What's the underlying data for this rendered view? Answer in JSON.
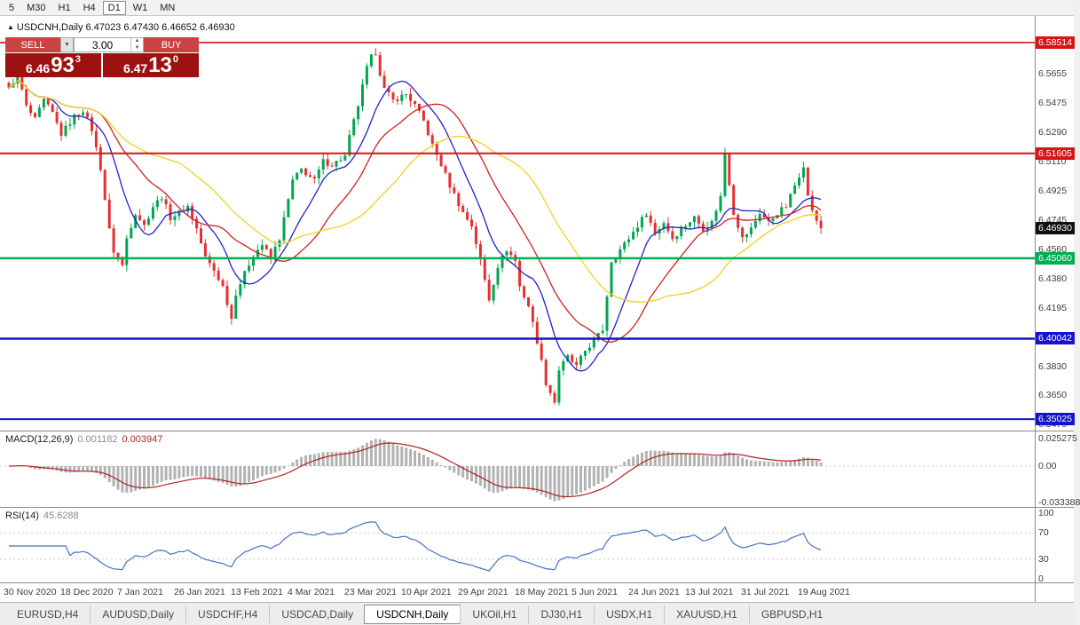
{
  "toolbar": {
    "timeframes": [
      "5",
      "M30",
      "H1",
      "H4",
      "D1",
      "W1",
      "MN"
    ],
    "active": "D1"
  },
  "chart_header": {
    "marker": "▲",
    "text": "USDCNH,Daily 6.47023 6.47430 6.46652 6.46930"
  },
  "trade_panel": {
    "sell_label": "SELL",
    "buy_label": "BUY",
    "volume": "3.00",
    "icons": {
      "dropdown": "▼",
      "spin_up": "▲",
      "spin_down": "▼"
    },
    "sell_price": {
      "base": "6.46",
      "big": "93",
      "sup": "3"
    },
    "buy_price": {
      "base": "6.47",
      "big": "13",
      "sup": "0"
    }
  },
  "macd_panel": {
    "name": "MACD(12,26,9)",
    "main_value": "0.001182",
    "signal_value": "0.003947"
  },
  "rsi_panel": {
    "name": "RSI(14)",
    "value": "45.6288"
  },
  "tabs": [
    "EURUSD,H4",
    "AUDUSD,Daily",
    "USDCHF,H4",
    "USDCAD,Daily",
    "USDCNH,Daily",
    "UKOil,H1",
    "DJ30,H1",
    "USDX,H1",
    "XAUUSD,H1",
    "GBPUSD,H1"
  ],
  "chart_data": {
    "type": "candlestick",
    "symbol": "USDCNH",
    "period": "Daily",
    "current_ohlc": {
      "open": 6.47023,
      "high": 6.4743,
      "low": 6.46652,
      "close": 6.4693
    },
    "x_labels": [
      "30 Nov 2020",
      "18 Dec 2020",
      "7 Jan 2021",
      "26 Jan 2021",
      "13 Feb 2021",
      "4 Mar 2021",
      "23 Mar 2021",
      "10 Apr 2021",
      "29 Apr 2021",
      "18 May 2021",
      "5 Jun 2021",
      "24 Jun 2021",
      "13 Jul 2021",
      "31 Jul 2021",
      "19 Aug 2021"
    ],
    "y_ticks": [
      {
        "text": "6.5655",
        "v": 6.5655
      },
      {
        "text": "6.5475",
        "v": 6.5475
      },
      {
        "text": "6.5290",
        "v": 6.529
      },
      {
        "text": "6.5110",
        "v": 6.511
      },
      {
        "text": "6.4925",
        "v": 6.4925
      },
      {
        "text": "6.4745",
        "v": 6.4745
      },
      {
        "text": "6.4560",
        "v": 6.456
      },
      {
        "text": "6.4380",
        "v": 6.438
      },
      {
        "text": "6.4195",
        "v": 6.4195
      },
      {
        "text": "6.3830",
        "v": 6.383
      },
      {
        "text": "6.3650",
        "v": 6.365
      },
      {
        "text": "6.3470",
        "v": 6.347
      }
    ],
    "levels": [
      {
        "text": "6.58514",
        "v": 6.58514,
        "color": "#d41616",
        "lw": 1.6
      },
      {
        "text": "6.51605",
        "v": 6.51605,
        "color": "#d41616",
        "lw": 2
      },
      {
        "text": "6.45060",
        "v": 6.4506,
        "color": "#00b050",
        "lw": 2.5
      },
      {
        "text": "6.40042",
        "v": 6.40042,
        "color": "#1414cc",
        "lw": 2.5
      },
      {
        "text": "6.35025",
        "v": 6.35025,
        "color": "#1414cc",
        "lw": 2
      }
    ],
    "current_price": {
      "text": "6.46930",
      "v": 6.4693,
      "bg": "#101010"
    },
    "price_map": {
      "top": 6.6017,
      "bottom": 6.3431
    },
    "candles": {
      "count": 187,
      "x0": 10,
      "step": 4.92,
      "width": 3,
      "noise": 0.0035,
      "wick": 0.004,
      "up_color": "#00a550",
      "down_color": "#e53030",
      "anchors": [
        [
          0,
          6.556
        ],
        [
          2,
          6.566
        ],
        [
          4,
          6.545
        ],
        [
          6,
          6.537
        ],
        [
          8,
          6.549
        ],
        [
          10,
          6.541
        ],
        [
          12,
          6.528
        ],
        [
          15,
          6.539
        ],
        [
          17,
          6.543
        ],
        [
          19,
          6.531
        ],
        [
          21,
          6.507
        ],
        [
          23,
          6.468
        ],
        [
          24,
          6.455
        ],
        [
          26,
          6.446
        ],
        [
          27,
          6.463
        ],
        [
          29,
          6.479
        ],
        [
          31,
          6.471
        ],
        [
          33,
          6.483
        ],
        [
          35,
          6.489
        ],
        [
          37,
          6.476
        ],
        [
          39,
          6.479
        ],
        [
          41,
          6.483
        ],
        [
          43,
          6.469
        ],
        [
          45,
          6.451
        ],
        [
          47,
          6.443
        ],
        [
          49,
          6.433
        ],
        [
          51,
          6.413
        ],
        [
          52,
          6.429
        ],
        [
          54,
          6.441
        ],
        [
          56,
          6.453
        ],
        [
          58,
          6.459
        ],
        [
          60,
          6.451
        ],
        [
          62,
          6.463
        ],
        [
          65,
          6.499
        ],
        [
          67,
          6.506
        ],
        [
          70,
          6.499
        ],
        [
          72,
          6.511
        ],
        [
          74,
          6.509
        ],
        [
          77,
          6.514
        ],
        [
          78,
          6.526
        ],
        [
          80,
          6.546
        ],
        [
          82,
          6.569
        ],
        [
          83,
          6.576
        ],
        [
          84,
          6.579
        ],
        [
          85,
          6.566
        ],
        [
          86,
          6.556
        ],
        [
          88,
          6.549
        ],
        [
          91,
          6.553
        ],
        [
          93,
          6.546
        ],
        [
          95,
          6.536
        ],
        [
          97,
          6.521
        ],
        [
          99,
          6.509
        ],
        [
          101,
          6.496
        ],
        [
          104,
          6.479
        ],
        [
          106,
          6.471
        ],
        [
          108,
          6.449
        ],
        [
          110,
          6.425
        ],
        [
          112,
          6.446
        ],
        [
          114,
          6.456
        ],
        [
          116,
          6.449
        ],
        [
          117,
          6.433
        ],
        [
          119,
          6.421
        ],
        [
          121,
          6.399
        ],
        [
          123,
          6.373
        ],
        [
          125,
          6.361
        ],
        [
          126,
          6.381
        ],
        [
          128,
          6.389
        ],
        [
          130,
          6.383
        ],
        [
          132,
          6.393
        ],
        [
          134,
          6.399
        ],
        [
          136,
          6.406
        ],
        [
          138,
          6.449
        ],
        [
          140,
          6.456
        ],
        [
          142,
          6.463
        ],
        [
          144,
          6.471
        ],
        [
          146,
          6.479
        ],
        [
          148,
          6.466
        ],
        [
          150,
          6.473
        ],
        [
          152,
          6.463
        ],
        [
          154,
          6.469
        ],
        [
          157,
          6.476
        ],
        [
          159,
          6.469
        ],
        [
          161,
          6.473
        ],
        [
          163,
          6.489
        ],
        [
          164,
          6.516
        ],
        [
          166,
          6.479
        ],
        [
          168,
          6.463
        ],
        [
          170,
          6.469
        ],
        [
          172,
          6.479
        ],
        [
          174,
          6.473
        ],
        [
          176,
          6.479
        ],
        [
          178,
          6.483
        ],
        [
          180,
          6.496
        ],
        [
          182,
          6.509
        ],
        [
          183,
          6.489
        ],
        [
          185,
          6.473
        ],
        [
          186,
          6.4693
        ]
      ]
    },
    "mas": [
      {
        "period": 10,
        "color": "#2222cc"
      },
      {
        "period": 22,
        "color": "#d02020"
      },
      {
        "period": 40,
        "color": "#f2d024"
      }
    ],
    "macd": {
      "label": "MACD(12,26,9)",
      "values": [
        0.001182,
        0.003947
      ],
      "ticks": [
        {
          "text": "0.025275",
          "v": 0.025275
        },
        {
          "text": "0.00",
          "v": 0
        },
        {
          "text": "-0.033388",
          "v": -0.033388
        }
      ]
    },
    "rsi": {
      "label": "RSI(14)",
      "value": 45.6288,
      "guides": [
        70,
        30
      ],
      "ticks": [
        {
          "text": "100",
          "v": 100
        },
        {
          "text": "70",
          "v": 70
        },
        {
          "text": "30",
          "v": 30
        },
        {
          "text": "0",
          "v": 0
        }
      ]
    }
  }
}
